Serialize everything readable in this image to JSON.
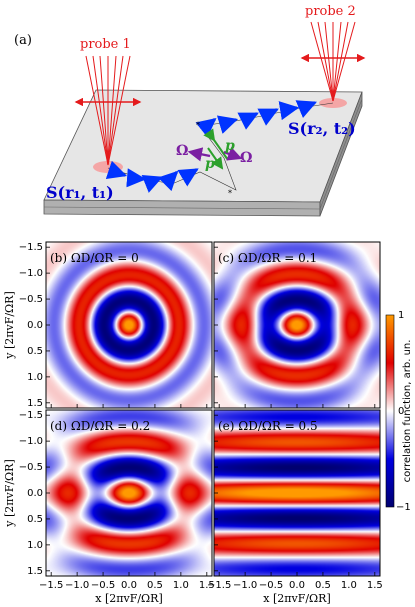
{
  "panel_a": {
    "label": "(a)",
    "probe1": "probe 1",
    "probe2": "probe 2",
    "s1": "S(r₁, t₁)",
    "s2": "S(r₂, t₂)",
    "omega": "Ω",
    "p": "p"
  },
  "panels": [
    {
      "label": "(b) ΩD/ΩR = 0",
      "ratio": 0.0
    },
    {
      "label": "(c) ΩD/ΩR = 0.1",
      "ratio": 0.1
    },
    {
      "label": "(d) ΩD/ΩR = 0.2",
      "ratio": 0.2
    },
    {
      "label": "(e) ΩD/ΩR = 0.5",
      "ratio": 0.5
    }
  ],
  "axes": {
    "xlabel": "x [2πvF/ΩR]",
    "ylabel": "y [2πvF/ΩR]",
    "ticks": [
      "−1.5",
      "−1.0",
      "−0.5",
      "0.0",
      "0.5",
      "1.0",
      "1.5"
    ]
  },
  "colorbar": {
    "label": "correlation function, arb. un.",
    "top": "1",
    "mid": "0",
    "bottom": "−1"
  },
  "colors": {
    "red": "#e00000",
    "blue": "#0000cc",
    "probe": "#e41a1c",
    "arrow": "#0033ff",
    "p_arrow": "#2ca02c",
    "omega_arrow": "#7b1fa2",
    "plate_top": "#e6e6e6",
    "plate_side": "#9a9a9a"
  }
}
